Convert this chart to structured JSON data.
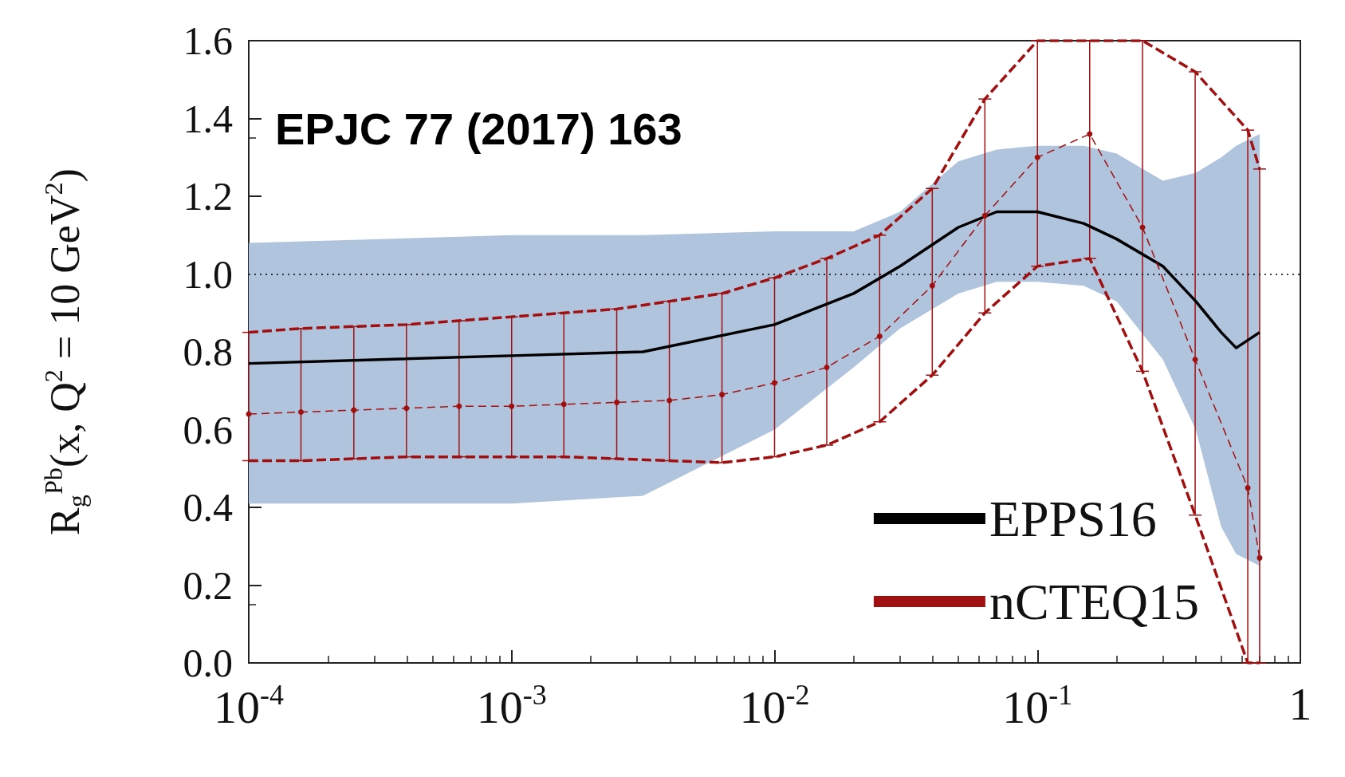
{
  "chart_data": {
    "type": "line",
    "ylabel": "R$_{g}$$^{Pb}$(x, Q$^{2}$ = 10 GeV$^{2}$)",
    "annotations": [
      "EPJC 77 (2017) 163"
    ],
    "log": "x",
    "xlim": [
      0.0001,
      1
    ],
    "xticks": [
      {
        "value": 0.0001,
        "label": "10$^{-4}$"
      },
      {
        "value": 0.001,
        "label": "10$^{-3}$"
      },
      {
        "value": 0.01,
        "label": "10$^{-2}$"
      },
      {
        "value": 0.1,
        "label": "10$^{-1}$"
      },
      1
    ],
    "ylim": [
      0,
      1.6
    ],
    "yticks": [
      {
        "value": 0,
        "label": "0.0"
      },
      0.2,
      0.4,
      0.6,
      0.8,
      {
        "value": 1,
        "label": "1.0"
      },
      1.2,
      1.4,
      1.6
    ],
    "grid": false,
    "legend": "bottom right",
    "ref_lines": [
      {
        "axis": "y",
        "value": 1,
        "color": "#000000",
        "line_style": "dotted"
      }
    ],
    "series": [
      {
        "name": "EPPS16",
        "color": "#000000",
        "line_style": "solid",
        "marker": "none",
        "x": [
          0.0001,
          0.000316,
          0.001,
          0.00316,
          0.01,
          0.02,
          0.03,
          0.05,
          0.07,
          0.1,
          0.15,
          0.2,
          0.3,
          0.4,
          0.5,
          0.57,
          0.7
        ],
        "values": [
          0.77,
          0.78,
          0.79,
          0.8,
          0.87,
          0.95,
          1.02,
          1.12,
          1.16,
          1.16,
          1.13,
          1.09,
          1.02,
          0.93,
          0.85,
          0.81,
          0.85
        ],
        "lower": [
          0.41,
          0.41,
          0.41,
          0.43,
          0.6,
          0.76,
          0.86,
          0.95,
          0.98,
          0.98,
          0.97,
          0.93,
          0.78,
          0.6,
          0.35,
          0.28,
          0.25
        ],
        "upper": [
          1.08,
          1.09,
          1.1,
          1.1,
          1.11,
          1.11,
          1.16,
          1.29,
          1.32,
          1.33,
          1.33,
          1.31,
          1.24,
          1.26,
          1.3,
          1.33,
          1.36
        ]
      },
      {
        "color": "#a01010",
        "line_style": "dashed",
        "marker": "none",
        "x": [
          0.0001,
          0.000158,
          0.000251,
          0.000398,
          0.000631,
          0.001,
          0.00158,
          0.00251,
          0.00398,
          0.00631,
          0.01,
          0.0158,
          0.0251,
          0.0398,
          0.0631,
          0.1,
          0.158,
          0.251,
          0.398,
          0.631,
          0.7
        ],
        "values": [
          0.85,
          0.86,
          0.865,
          0.87,
          0.88,
          0.89,
          0.9,
          0.91,
          0.93,
          0.95,
          0.99,
          1.04,
          1.1,
          1.22,
          1.45,
          1.6,
          1.6,
          1.6,
          1.52,
          1.37,
          1.27
        ]
      },
      {
        "color": "#a01010",
        "line_style": "dashed",
        "marker": "none",
        "x": [
          0.0001,
          0.000158,
          0.000251,
          0.000398,
          0.000631,
          0.001,
          0.00158,
          0.00251,
          0.00398,
          0.00631,
          0.01,
          0.0158,
          0.0251,
          0.0398,
          0.0631,
          0.1,
          0.158,
          0.251,
          0.398,
          0.631,
          0.7
        ],
        "values": [
          0.52,
          0.52,
          0.525,
          0.53,
          0.53,
          0.53,
          0.53,
          0.525,
          0.52,
          0.515,
          0.53,
          0.56,
          0.62,
          0.74,
          0.9,
          1.02,
          1.04,
          0.75,
          0.38,
          0,
          0
        ]
      },
      {
        "name": "nCTEQ15",
        "color": "#a01010",
        "line_style": "dashed",
        "marker": "circle",
        "x": [
          0.0001,
          0.000158,
          0.000251,
          0.000398,
          0.000631,
          0.001,
          0.00158,
          0.00251,
          0.00398,
          0.00631,
          0.01,
          0.0158,
          0.0251,
          0.0398,
          0.0631,
          0.1,
          0.158,
          0.251,
          0.398,
          0.631,
          0.7
        ],
        "values": [
          0.64,
          0.645,
          0.65,
          0.655,
          0.66,
          0.66,
          0.665,
          0.67,
          0.675,
          0.69,
          0.72,
          0.76,
          0.84,
          0.97,
          1.15,
          1.3,
          1.36,
          1.12,
          0.78,
          0.45,
          0.27
        ],
        "errors": [
          [
            0.52,
            0.85
          ],
          [
            0.52,
            0.86
          ],
          [
            0.525,
            0.865
          ],
          [
            0.53,
            0.87
          ],
          [
            0.53,
            0.88
          ],
          [
            0.53,
            0.89
          ],
          [
            0.53,
            0.9
          ],
          [
            0.525,
            0.91
          ],
          [
            0.52,
            0.93
          ],
          [
            0.515,
            0.95
          ],
          [
            0.53,
            0.99
          ],
          [
            0.56,
            1.04
          ],
          [
            0.62,
            1.1
          ],
          [
            0.74,
            1.22
          ],
          [
            0.9,
            1.45
          ],
          [
            1.02,
            1.6
          ],
          [
            1.04,
            1.6
          ],
          [
            0.75,
            1.6
          ],
          [
            0.38,
            1.52
          ],
          [
            0,
            1.37
          ],
          [
            0,
            1.27
          ]
        ]
      }
    ]
  }
}
